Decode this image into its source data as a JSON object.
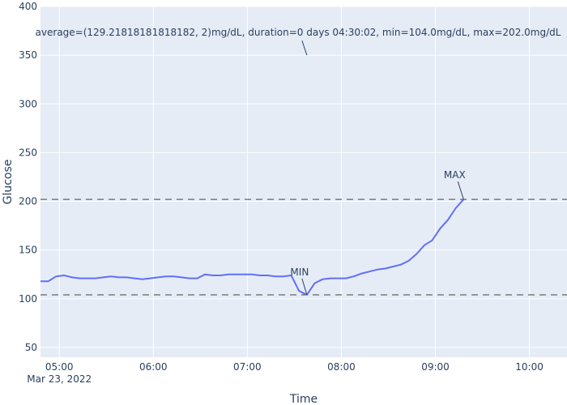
{
  "chart_data": {
    "type": "line",
    "xlabel": "Time",
    "ylabel": "Glucose",
    "ylim": [
      40,
      400
    ],
    "xlim": [
      "2022-03-23 04:48",
      "2022-03-23 10:24"
    ],
    "x_ticks": [
      "05:00",
      "06:00",
      "07:00",
      "08:00",
      "09:00",
      "10:00"
    ],
    "x_tick_sublabel": "Mar 23, 2022",
    "y_ticks": [
      50,
      100,
      150,
      200,
      250,
      300,
      350,
      400
    ],
    "series": [
      {
        "color": "#636efa",
        "x": [
          "2022-03-23 04:48",
          "2022-03-23 04:53",
          "2022-03-23 04:58",
          "2022-03-23 05:03",
          "2022-03-23 05:08",
          "2022-03-23 05:13",
          "2022-03-23 05:18",
          "2022-03-23 05:23",
          "2022-03-23 05:28",
          "2022-03-23 05:33",
          "2022-03-23 05:38",
          "2022-03-23 05:43",
          "2022-03-23 05:48",
          "2022-03-23 05:53",
          "2022-03-23 05:58",
          "2022-03-23 06:03",
          "2022-03-23 06:08",
          "2022-03-23 06:13",
          "2022-03-23 06:18",
          "2022-03-23 06:23",
          "2022-03-23 06:28",
          "2022-03-23 06:33",
          "2022-03-23 06:38",
          "2022-03-23 06:43",
          "2022-03-23 06:48",
          "2022-03-23 06:53",
          "2022-03-23 06:58",
          "2022-03-23 07:03",
          "2022-03-23 07:08",
          "2022-03-23 07:13",
          "2022-03-23 07:18",
          "2022-03-23 07:23",
          "2022-03-23 07:28",
          "2022-03-23 07:33",
          "2022-03-23 07:38",
          "2022-03-23 07:43",
          "2022-03-23 07:48",
          "2022-03-23 07:53",
          "2022-03-23 07:58",
          "2022-03-23 08:03",
          "2022-03-23 08:08",
          "2022-03-23 08:13",
          "2022-03-23 08:18",
          "2022-03-23 08:23",
          "2022-03-23 08:28",
          "2022-03-23 08:33",
          "2022-03-23 08:38",
          "2022-03-23 08:43",
          "2022-03-23 08:48",
          "2022-03-23 08:53",
          "2022-03-23 08:58",
          "2022-03-23 09:03",
          "2022-03-23 09:08",
          "2022-03-23 09:13",
          "2022-03-23 09:18"
        ],
        "y": [
          118,
          118,
          123,
          124,
          122,
          121,
          121,
          121,
          122,
          123,
          122,
          122,
          121,
          120,
          121,
          122,
          123,
          123,
          122,
          121,
          121,
          125,
          124,
          124,
          125,
          125,
          125,
          125,
          124,
          124,
          123,
          123,
          124,
          108,
          104,
          116,
          120,
          121,
          121,
          121,
          123,
          126,
          128,
          130,
          131,
          133,
          135,
          139,
          146,
          155,
          160,
          172,
          181,
          193,
          202
        ]
      }
    ],
    "reference_lines": [
      {
        "y": 104.0
      },
      {
        "y": 202.0
      }
    ],
    "annotations": [
      {
        "text": "average=(129.21818181818182, 2)mg/dL, duration=0 days 04:30:02, min=104.0mg/dL, max=202.0mg/dL",
        "x": "2022-03-23 07:38",
        "y": 350
      },
      {
        "text": "MIN",
        "x": "2022-03-23 07:38",
        "y": 104
      },
      {
        "text": "MAX",
        "x": "2022-03-23 09:18",
        "y": 202
      }
    ],
    "grid": true,
    "plot_background": "#e5ecf6"
  }
}
